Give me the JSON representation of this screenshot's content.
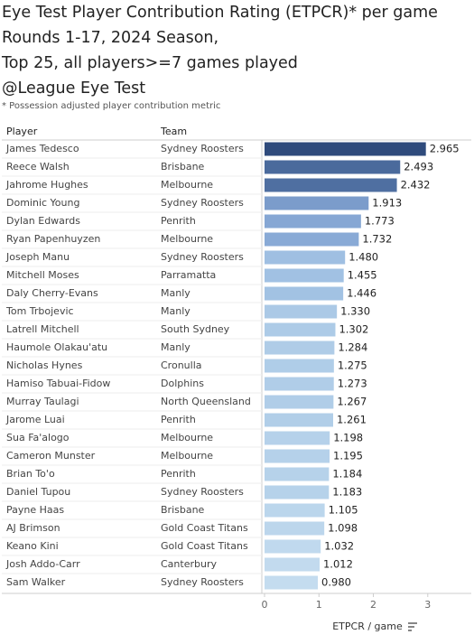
{
  "chart_data": {
    "type": "bar",
    "title": [
      "Eye Test Player Contribution Rating (ETPCR)* per game",
      "Rounds 1-17, 2024 Season,",
      "Top 25, all players>=7 games played",
      "@League Eye Test"
    ],
    "subtitle": "* Possession adjusted player contribution metric",
    "column_headers": [
      "Player",
      "Team"
    ],
    "x_label": "ETPCR / game",
    "categories": [
      "James Tedesco",
      "Reece Walsh",
      "Jahrome Hughes",
      "Dominic Young",
      "Dylan Edwards",
      "Ryan Papenhuyzen",
      "Joseph Manu",
      "Mitchell Moses",
      "Daly Cherry-Evans",
      "Tom Trbojevic",
      "Latrell Mitchell",
      "Haumole Olakau'atu",
      "Nicholas Hynes",
      "Hamiso Tabuai-Fidow",
      "Murray Taulagi",
      "Jarome Luai",
      "Sua Fa'alogo",
      "Cameron Munster",
      "Brian To'o",
      "Daniel Tupou",
      "Payne Haas",
      "AJ Brimson",
      "Keano Kini",
      "Josh Addo-Carr",
      "Sam Walker"
    ],
    "teams": [
      "Sydney Roosters",
      "Brisbane",
      "Melbourne",
      "Sydney Roosters",
      "Penrith",
      "Melbourne",
      "Sydney Roosters",
      "Parramatta",
      "Manly",
      "Manly",
      "South Sydney",
      "Manly",
      "Cronulla",
      "Dolphins",
      "North Queensland",
      "Penrith",
      "Melbourne",
      "Melbourne",
      "Penrith",
      "Sydney Roosters",
      "Brisbane",
      "Gold Coast Titans",
      "Gold Coast Titans",
      "Canterbury",
      "Sydney Roosters"
    ],
    "values": [
      2.965,
      2.493,
      2.432,
      1.913,
      1.773,
      1.732,
      1.48,
      1.455,
      1.446,
      1.33,
      1.302,
      1.284,
      1.275,
      1.273,
      1.267,
      1.261,
      1.198,
      1.195,
      1.184,
      1.183,
      1.105,
      1.098,
      1.032,
      1.012,
      0.98
    ],
    "value_labels": [
      "2.965",
      "2.493",
      "2.432",
      "1.913",
      "1.773",
      "1.732",
      "1.480",
      "1.455",
      "1.446",
      "1.330",
      "1.302",
      "1.284",
      "1.275",
      "1.273",
      "1.267",
      "1.261",
      "1.198",
      "1.195",
      "1.184",
      "1.183",
      "1.105",
      "1.098",
      "1.032",
      "1.012",
      "0.980"
    ],
    "colors": [
      "#2f4b7c",
      "#4a6a9c",
      "#4f6fa1",
      "#7b9ccb",
      "#86a7d4",
      "#89aad6",
      "#9fbfe2",
      "#a1c1e3",
      "#a2c2e3",
      "#abc9e6",
      "#adcbe7",
      "#afcce7",
      "#afcde8",
      "#b0cde8",
      "#b0cde8",
      "#b1cee8",
      "#b5d1ea",
      "#b5d1ea",
      "#b6d2ea",
      "#b6d2ea",
      "#bbd6ec",
      "#bcd6ec",
      "#c0d9ee",
      "#c2daee",
      "#c4dcef"
    ],
    "xlim": [
      0,
      3.75
    ],
    "xticks": [
      0,
      1,
      2,
      3
    ]
  }
}
